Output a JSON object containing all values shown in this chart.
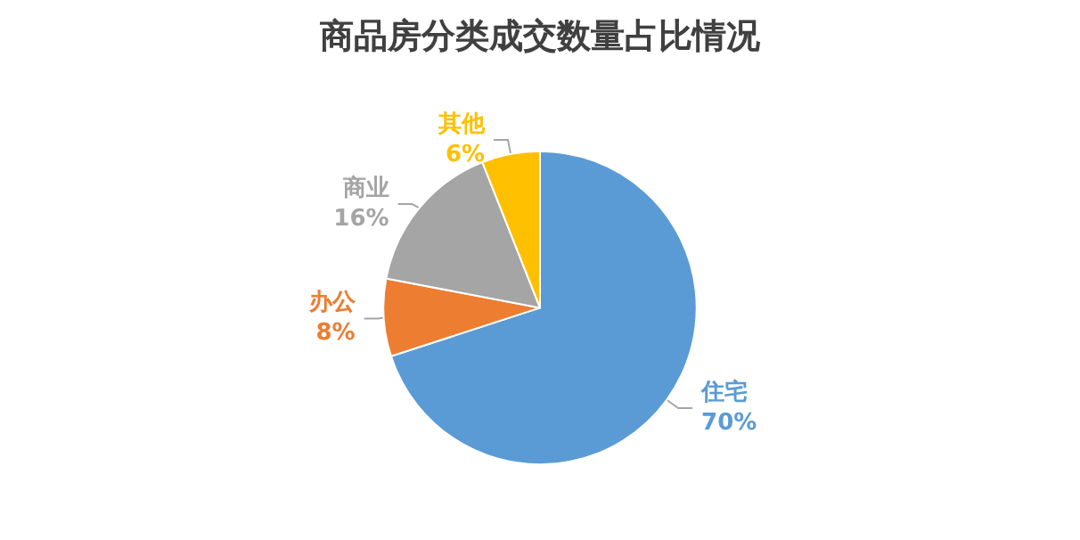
{
  "chart_data": {
    "type": "pie",
    "title": "商品房分类成交数量占比情况",
    "categories": [
      "住宅",
      "办公",
      "商业",
      "其他"
    ],
    "values": [
      70,
      8,
      16,
      6
    ],
    "value_labels": [
      "70%",
      "8%",
      "16%",
      "6%"
    ],
    "colors": [
      "#5b9bd5",
      "#ed7d31",
      "#a5a5a5",
      "#ffc000"
    ],
    "legend": false
  }
}
